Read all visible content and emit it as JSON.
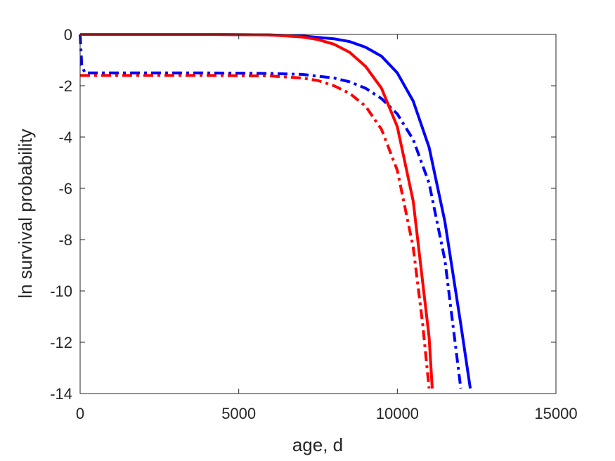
{
  "chart_data": {
    "type": "line",
    "title": "",
    "xlabel": "age, d",
    "ylabel": "ln survival probability",
    "xlim": [
      0,
      15000
    ],
    "ylim": [
      -14,
      0
    ],
    "x_ticks": [
      0,
      5000,
      10000,
      15000
    ],
    "x_tick_labels": [
      "0",
      "5000",
      "10000",
      "15000"
    ],
    "y_ticks": [
      0,
      -2,
      -4,
      -6,
      -8,
      -10,
      -12,
      -14
    ],
    "y_tick_labels": [
      "0",
      "-2",
      "-4",
      "-6",
      "-8",
      "-10",
      "-12",
      "-14"
    ],
    "grid": false,
    "legend": false,
    "series": [
      {
        "color": "#0000ff",
        "line_style": "solid",
        "x": [
          0,
          2000,
          4000,
          6000,
          7000,
          8000,
          8500,
          9000,
          9500,
          10000,
          10500,
          11000,
          11500,
          12000,
          12300
        ],
        "y": [
          0,
          0,
          0,
          -0.02,
          -0.06,
          -0.17,
          -0.28,
          -0.5,
          -0.85,
          -1.5,
          -2.6,
          -4.4,
          -7.3,
          -11.3,
          -13.8
        ]
      },
      {
        "color": "#0000ff",
        "line_style": "dash-dot",
        "x": [
          0,
          50,
          150,
          2000,
          4000,
          6000,
          7000,
          8000,
          8500,
          9000,
          9500,
          10000,
          10500,
          11000,
          11500,
          12000
        ],
        "y": [
          0,
          -1.2,
          -1.5,
          -1.5,
          -1.5,
          -1.52,
          -1.56,
          -1.7,
          -1.85,
          -2.1,
          -2.5,
          -3.1,
          -4.1,
          -5.8,
          -8.8,
          -13.8
        ]
      },
      {
        "color": "#ff0000",
        "line_style": "solid",
        "x": [
          0,
          2000,
          4000,
          6000,
          7000,
          7500,
          8000,
          8500,
          9000,
          9500,
          10000,
          10500,
          11000,
          11100
        ],
        "y": [
          0,
          0,
          0,
          -0.02,
          -0.1,
          -0.2,
          -0.38,
          -0.7,
          -1.25,
          -2.1,
          -3.6,
          -6.5,
          -11.8,
          -13.8
        ]
      },
      {
        "color": "#ff0000",
        "line_style": "dash-dot",
        "x": [
          0,
          2000,
          4000,
          6000,
          7000,
          7500,
          8000,
          8500,
          9000,
          9500,
          10000,
          10500,
          10800,
          11000
        ],
        "y": [
          -1.6,
          -1.6,
          -1.6,
          -1.62,
          -1.7,
          -1.8,
          -2.0,
          -2.3,
          -2.8,
          -3.7,
          -5.3,
          -8.3,
          -11.3,
          -13.8
        ]
      }
    ]
  }
}
